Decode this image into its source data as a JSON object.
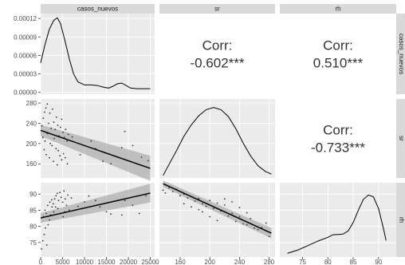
{
  "chart_data": {
    "type": "scatter",
    "variables": [
      "casos_nuevos",
      "sr",
      "rh"
    ],
    "colors": {
      "panel": "#ebebeb",
      "grid": "#ffffff",
      "strip": "#d9d9d9",
      "points": "#333333",
      "line": "#000000",
      "band": "#999999"
    },
    "axes": {
      "casos_nuevos": {
        "range": [
          0,
          26000
        ],
        "ticks": [
          0,
          5000,
          10000,
          15000,
          20000,
          25000
        ],
        "tick_labels": [
          "0",
          "5000",
          "10000",
          "15000",
          "20000",
          "25000"
        ]
      },
      "sr": {
        "range": [
          132,
          288
        ],
        "ticks": [
          160,
          200,
          240,
          280
        ],
        "tick_labels": [
          "160",
          "200",
          "240",
          "280"
        ]
      },
      "rh": {
        "range": [
          70.5,
          93.5
        ],
        "ticks": [
          75,
          80,
          85,
          90
        ],
        "tick_labels": [
          "75",
          "80",
          "85",
          "90"
        ]
      }
    },
    "density_axis": {
      "range": [
        -3e-06,
        0.000128
      ],
      "ticks": [
        0,
        3e-05,
        6e-05,
        9e-05,
        0.00012
      ],
      "tick_labels": [
        "0.00000",
        "0.00003",
        "0.00006",
        "0.00009",
        "0.00012"
      ]
    },
    "sr_row_ticks": {
      "ticks": [
        160,
        200,
        240,
        280
      ],
      "tick_labels": [
        "160",
        "200",
        "240",
        "280"
      ]
    },
    "rh_row_ticks": {
      "ticks": [
        75,
        80,
        85,
        90
      ],
      "tick_labels": [
        "75",
        "80",
        "85",
        "90"
      ]
    },
    "correlations": [
      {
        "pair": [
          "casos_nuevos",
          "sr"
        ],
        "label": "Corr:",
        "value": "-0.602***"
      },
      {
        "pair": [
          "casos_nuevos",
          "rh"
        ],
        "label": "Corr:",
        "value": "0.510***"
      },
      {
        "pair": [
          "sr",
          "rh"
        ],
        "label": "Corr:",
        "value": "-0.733***"
      }
    ],
    "densities": {
      "casos_nuevos": [
        [
          0,
          4.8e-05
        ],
        [
          1000,
          7.8e-05
        ],
        [
          2000,
          0.000103
        ],
        [
          3000,
          0.000117
        ],
        [
          3800,
          0.000121
        ],
        [
          4500,
          0.000112
        ],
        [
          5500,
          8.5e-05
        ],
        [
          6500,
          5.5e-05
        ],
        [
          7500,
          3e-05
        ],
        [
          8500,
          1.7e-05
        ],
        [
          10000,
          1.2e-05
        ],
        [
          11500,
          1.2e-05
        ],
        [
          13000,
          1.1e-05
        ],
        [
          14500,
          8e-06
        ],
        [
          15500,
          7e-06
        ],
        [
          16500,
          1e-05
        ],
        [
          17500,
          1.4e-05
        ],
        [
          18500,
          1.5e-05
        ],
        [
          19500,
          1.1e-05
        ],
        [
          20500,
          7e-06
        ],
        [
          22000,
          6e-06
        ],
        [
          23500,
          6e-06
        ],
        [
          25000,
          6e-06
        ]
      ],
      "sr": [
        [
          137,
          0.002
        ],
        [
          145,
          0.15
        ],
        [
          155,
          0.33
        ],
        [
          165,
          0.52
        ],
        [
          175,
          0.67
        ],
        [
          185,
          0.79
        ],
        [
          195,
          0.87
        ],
        [
          205,
          0.9
        ],
        [
          215,
          0.87
        ],
        [
          225,
          0.78
        ],
        [
          235,
          0.62
        ],
        [
          245,
          0.43
        ],
        [
          255,
          0.26
        ],
        [
          265,
          0.13
        ],
        [
          275,
          0.055
        ],
        [
          283,
          0.02
        ]
      ],
      "rh": [
        [
          72,
          0.02
        ],
        [
          74,
          0.07
        ],
        [
          76,
          0.14
        ],
        [
          78,
          0.21
        ],
        [
          80,
          0.27
        ],
        [
          81,
          0.31
        ],
        [
          82,
          0.315
        ],
        [
          83,
          0.32
        ],
        [
          84,
          0.37
        ],
        [
          85,
          0.5
        ],
        [
          86,
          0.69
        ],
        [
          87,
          0.86
        ],
        [
          88,
          0.93
        ],
        [
          89,
          0.9
        ],
        [
          90,
          0.72
        ],
        [
          91,
          0.4
        ],
        [
          91.5,
          0.22
        ]
      ]
    },
    "fits": {
      "sr_vs_casos_nuevos": {
        "x": [
          0,
          25000
        ],
        "y": [
          226,
          151
        ],
        "se_upper": [
          237,
          176
        ],
        "se_lower": [
          215,
          126
        ]
      },
      "rh_vs_casos_nuevos": {
        "x": [
          0,
          25000
        ],
        "y": [
          82.6,
          90.3
        ],
        "se_upper": [
          84.1,
          93.2
        ],
        "se_lower": [
          81.1,
          87.4
        ]
      },
      "rh_vs_sr": {
        "x": [
          137,
          283
        ],
        "y": [
          93.2,
          77.9
        ],
        "se_upper": [
          94.2,
          79.5
        ],
        "se_lower": [
          92.2,
          76.3
        ]
      }
    },
    "scatter": {
      "sr_vs_casos_nuevos": [
        [
          300,
          235
        ],
        [
          600,
          250
        ],
        [
          900,
          262
        ],
        [
          1200,
          270
        ],
        [
          1500,
          278
        ],
        [
          1800,
          240
        ],
        [
          2100,
          260
        ],
        [
          2400,
          230
        ],
        [
          2700,
          268
        ],
        [
          3000,
          242
        ],
        [
          3300,
          228
        ],
        [
          3600,
          252
        ],
        [
          3900,
          236
        ],
        [
          4200,
          215
        ],
        [
          4500,
          232
        ],
        [
          4800,
          248
        ],
        [
          5100,
          222
        ],
        [
          5400,
          212
        ],
        [
          5700,
          228
        ],
        [
          6000,
          205
        ],
        [
          6300,
          218
        ],
        [
          500,
          212
        ],
        [
          1000,
          205
        ],
        [
          1500,
          220
        ],
        [
          2200,
          200
        ],
        [
          2600,
          196
        ],
        [
          3100,
          210
        ],
        [
          3500,
          190
        ],
        [
          4000,
          186
        ],
        [
          4400,
          176
        ],
        [
          4800,
          168
        ],
        [
          5200,
          180
        ],
        [
          5600,
          172
        ],
        [
          6100,
          160
        ],
        [
          2900,
          165
        ],
        [
          3800,
          158
        ],
        [
          7200,
          213
        ],
        [
          9000,
          178
        ],
        [
          11500,
          205
        ],
        [
          12500,
          190
        ],
        [
          14200,
          165
        ],
        [
          16000,
          160
        ],
        [
          18500,
          192
        ],
        [
          19200,
          224
        ],
        [
          21000,
          196
        ],
        [
          23000,
          173
        ],
        [
          24500,
          166
        ],
        [
          800,
          188
        ],
        [
          1300,
          178
        ],
        [
          2000,
          172
        ]
      ],
      "rh_vs_casos_nuevos": [
        [
          200,
          73.0
        ],
        [
          500,
          75.5
        ],
        [
          800,
          77.5
        ],
        [
          1100,
          79.5
        ],
        [
          1400,
          74.2
        ],
        [
          1700,
          80.5
        ],
        [
          2000,
          82.0
        ],
        [
          2300,
          83.5
        ],
        [
          2600,
          86.0
        ],
        [
          2900,
          87.0
        ],
        [
          3200,
          88.5
        ],
        [
          3500,
          89.5
        ],
        [
          3800,
          90.2
        ],
        [
          4100,
          88.0
        ],
        [
          4400,
          90.5
        ],
        [
          4700,
          89.0
        ],
        [
          5000,
          87.5
        ],
        [
          5300,
          91.0
        ],
        [
          5600,
          88.5
        ],
        [
          5900,
          86.5
        ],
        [
          6200,
          89.7
        ],
        [
          6500,
          85.0
        ],
        [
          600,
          83.0
        ],
        [
          1000,
          85.0
        ],
        [
          1300,
          84.0
        ],
        [
          1600,
          86.5
        ],
        [
          2100,
          87.5
        ],
        [
          2500,
          88.2
        ],
        [
          3000,
          84.5
        ],
        [
          3400,
          86.0
        ],
        [
          3900,
          85.5
        ],
        [
          4500,
          84.0
        ],
        [
          5100,
          83.0
        ],
        [
          5500,
          84.5
        ],
        [
          7000,
          88.8
        ],
        [
          8500,
          86.2
        ],
        [
          10000,
          87.6
        ],
        [
          11000,
          89.4
        ],
        [
          12500,
          88.0
        ],
        [
          13500,
          86.0
        ],
        [
          15000,
          84.5
        ],
        [
          16000,
          83.8
        ],
        [
          18500,
          83.5
        ],
        [
          19200,
          88.0
        ],
        [
          21000,
          86.5
        ],
        [
          22500,
          84.0
        ],
        [
          24000,
          89.5
        ]
      ],
      "rh_vs_sr": [
        [
          137,
          91.2
        ],
        [
          140,
          90.3
        ],
        [
          145,
          92.0
        ],
        [
          150,
          90.8
        ],
        [
          155,
          91.5
        ],
        [
          160,
          89.5
        ],
        [
          165,
          90.0
        ],
        [
          170,
          88.8
        ],
        [
          175,
          89.2
        ],
        [
          180,
          87.8
        ],
        [
          185,
          88.6
        ],
        [
          190,
          87.0
        ],
        [
          195,
          86.2
        ],
        [
          200,
          88.0
        ],
        [
          205,
          85.5
        ],
        [
          210,
          87.2
        ],
        [
          215,
          84.8
        ],
        [
          220,
          86.6
        ],
        [
          225,
          83.2
        ],
        [
          230,
          84.0
        ],
        [
          235,
          81.5
        ],
        [
          240,
          83.0
        ],
        [
          245,
          80.8
        ],
        [
          250,
          80.5
        ],
        [
          255,
          82.4
        ],
        [
          260,
          79.5
        ],
        [
          265,
          79.0
        ],
        [
          270,
          79.6
        ],
        [
          276,
          81.0
        ],
        [
          280,
          76.9
        ],
        [
          190,
          84.5
        ],
        [
          200,
          83.0
        ],
        [
          210,
          81.8
        ],
        [
          220,
          88.5
        ],
        [
          230,
          87.6
        ],
        [
          240,
          85.8
        ],
        [
          250,
          84.2
        ],
        [
          175,
          86.0
        ],
        [
          185,
          85.2
        ],
        [
          165,
          87.0
        ]
      ]
    }
  }
}
